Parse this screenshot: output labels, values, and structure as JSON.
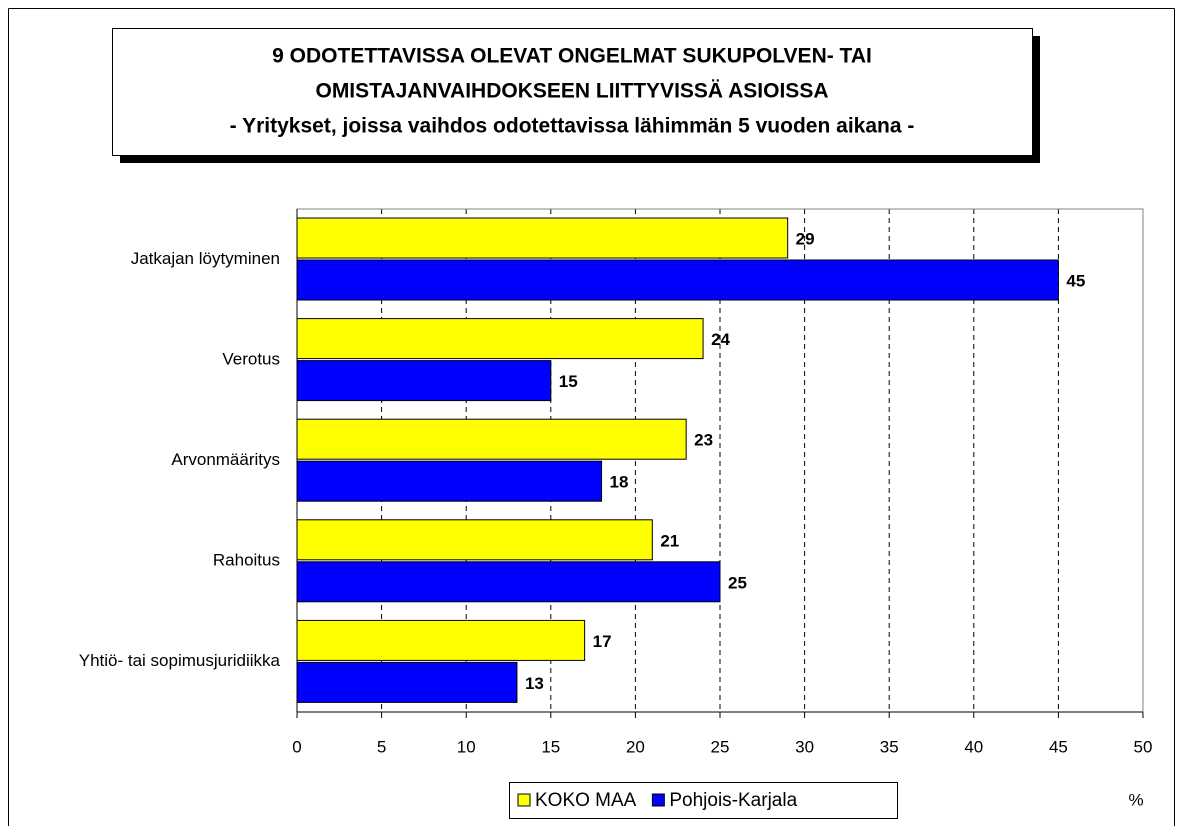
{
  "chart_data": {
    "type": "bar",
    "orientation": "horizontal",
    "title": [
      "9 ODOTETTAVISSA OLEVAT ONGELMAT SUKUPOLVEN- TAI",
      "OMISTAJANVAIHDOKSEEN LIITTYVISSÄ ASIOISSA",
      "- Yritykset, joissa vaihdos odotettavissa lähimmän 5 vuoden aikana -"
    ],
    "x_label": "%",
    "categories": [
      "Jatkajan löytyminen",
      "Verotus",
      "Arvonmääritys",
      "Rahoitus",
      "Yhtiö- tai sopimusjuridiikka"
    ],
    "series": [
      {
        "name": "KOKO MAA",
        "color": "#ffff00",
        "values": [
          29,
          24,
          23,
          21,
          17
        ]
      },
      {
        "name": "Pohjois-Karjala",
        "color": "#0000ff",
        "values": [
          45,
          15,
          18,
          25,
          13
        ]
      }
    ],
    "xlim": [
      0,
      50
    ],
    "xticks": [
      0,
      5,
      10,
      15,
      20,
      25,
      30,
      35,
      40,
      45,
      50
    ],
    "grid": true,
    "legend": "bottom"
  }
}
